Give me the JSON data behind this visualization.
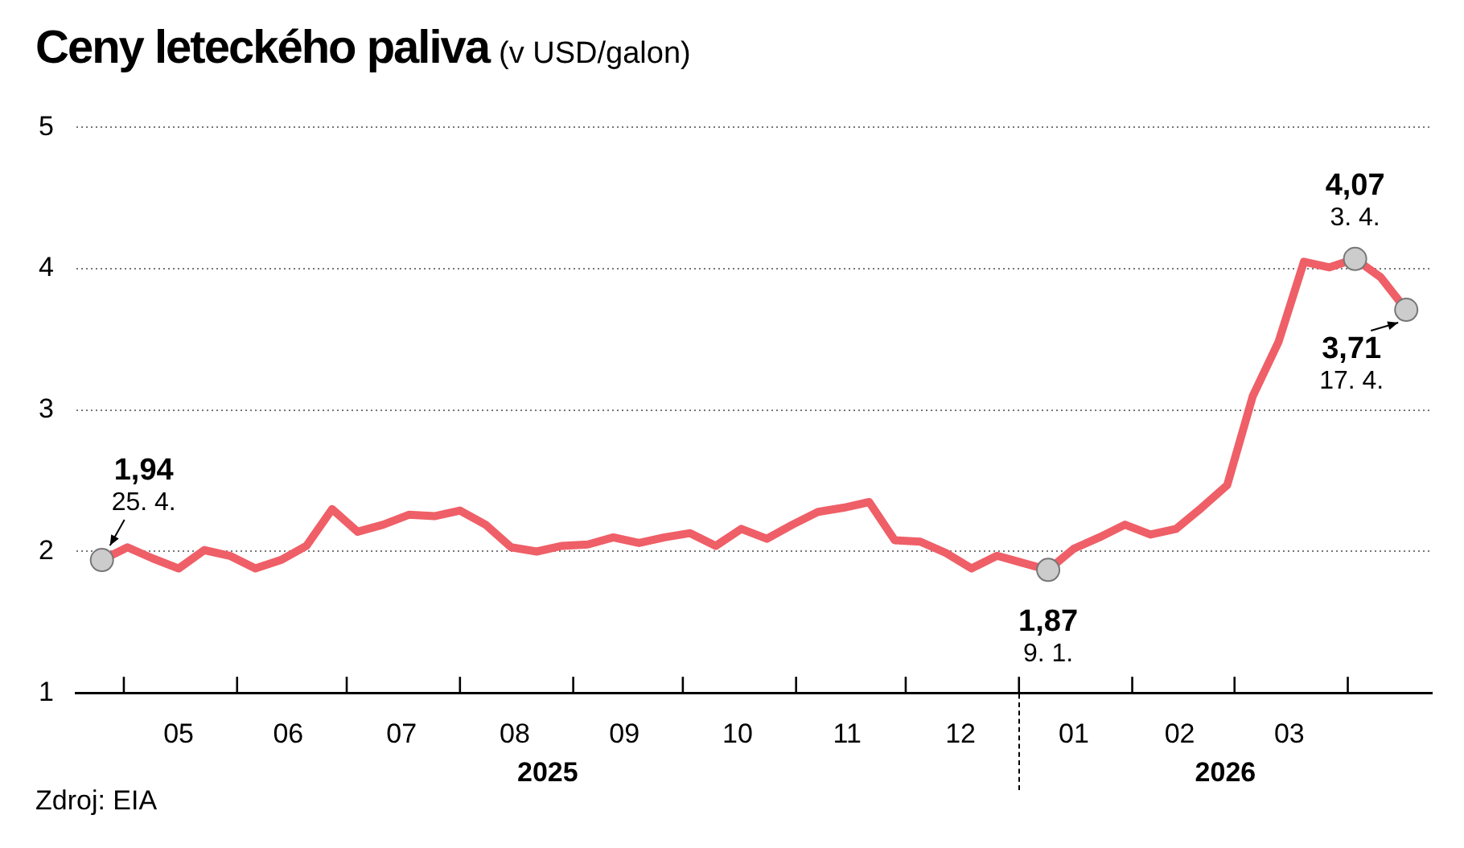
{
  "chart_data": {
    "type": "line",
    "title": "Ceny leteckého paliva",
    "subtitle": "(v USD/galon)",
    "x": [
      "2025-04-25",
      "2025-05-02",
      "2025-05-09",
      "2025-05-16",
      "2025-05-23",
      "2025-05-30",
      "2025-06-06",
      "2025-06-13",
      "2025-06-20",
      "2025-06-27",
      "2025-07-04",
      "2025-07-11",
      "2025-07-18",
      "2025-07-25",
      "2025-08-01",
      "2025-08-08",
      "2025-08-15",
      "2025-08-22",
      "2025-08-29",
      "2025-09-05",
      "2025-09-12",
      "2025-09-19",
      "2025-09-26",
      "2025-10-03",
      "2025-10-10",
      "2025-10-17",
      "2025-10-24",
      "2025-10-31",
      "2025-11-07",
      "2025-11-14",
      "2025-11-21",
      "2025-11-28",
      "2025-12-05",
      "2025-12-12",
      "2025-12-19",
      "2025-12-26",
      "2026-01-02",
      "2026-01-09",
      "2026-01-16",
      "2026-01-23",
      "2026-01-30",
      "2026-02-06",
      "2026-02-13",
      "2026-02-20",
      "2026-02-27",
      "2026-03-06",
      "2026-03-13",
      "2026-03-20",
      "2026-03-27",
      "2026-04-03",
      "2026-04-10",
      "2026-04-17"
    ],
    "values": [
      1.94,
      2.03,
      1.95,
      1.88,
      2.01,
      1.97,
      1.88,
      1.94,
      2.04,
      2.3,
      2.14,
      2.19,
      2.26,
      2.25,
      2.29,
      2.19,
      2.03,
      2.0,
      2.04,
      2.05,
      2.1,
      2.06,
      2.1,
      2.13,
      2.04,
      2.16,
      2.09,
      2.19,
      2.28,
      2.31,
      2.35,
      2.08,
      2.07,
      1.99,
      1.88,
      1.97,
      1.92,
      1.87,
      2.02,
      2.1,
      2.19,
      2.12,
      2.16,
      2.31,
      2.47,
      3.1,
      3.48,
      4.05,
      4.01,
      4.07,
      3.94,
      3.71
    ],
    "value_labels": [
      "1,94",
      null,
      null,
      null,
      null,
      null,
      null,
      null,
      null,
      null,
      null,
      null,
      null,
      null,
      null,
      null,
      null,
      null,
      null,
      null,
      null,
      null,
      null,
      null,
      null,
      null,
      null,
      null,
      null,
      null,
      null,
      null,
      null,
      null,
      null,
      null,
      null,
      "1,87",
      null,
      null,
      null,
      null,
      null,
      null,
      null,
      null,
      null,
      null,
      null,
      "4,07",
      null,
      "3,71"
    ],
    "color": "#ef5f67",
    "xlim": [
      "2025-04-18",
      "2026-04-24"
    ],
    "xticks": [
      {
        "value": "2025-05-01",
        "label": null
      },
      {
        "value": "2025-05-16",
        "label": "05"
      },
      {
        "value": "2025-06-01",
        "label": null
      },
      {
        "value": "2025-06-15",
        "label": "06"
      },
      {
        "value": "2025-07-01",
        "label": null
      },
      {
        "value": "2025-07-16",
        "label": "07"
      },
      {
        "value": "2025-08-01",
        "label": null
      },
      {
        "value": "2025-08-16",
        "label": "08"
      },
      {
        "value": "2025-09-01",
        "label": null
      },
      {
        "value": "2025-09-15",
        "label": "09"
      },
      {
        "value": "2025-10-01",
        "label": null
      },
      {
        "value": "2025-10-16",
        "label": "10"
      },
      {
        "value": "2025-11-01",
        "label": null
      },
      {
        "value": "2025-11-15",
        "label": "11"
      },
      {
        "value": "2025-12-01",
        "label": null
      },
      {
        "value": "2025-12-16",
        "label": "12"
      },
      {
        "value": "2026-01-01",
        "label": null
      },
      {
        "value": "2026-01-16",
        "label": "01"
      },
      {
        "value": "2026-02-01",
        "label": null
      },
      {
        "value": "2026-02-14",
        "label": "02"
      },
      {
        "value": "2026-03-01",
        "label": null
      },
      {
        "value": "2026-03-16",
        "label": "03"
      },
      {
        "value": "2026-04-01",
        "label": null
      }
    ],
    "ylim": [
      1,
      5
    ],
    "yticks": [
      1,
      2,
      3,
      4,
      5
    ],
    "grid": "y",
    "annotations": [
      {
        "text": "25. 4.",
        "x": "2025-04-25",
        "y": 1.94
      },
      {
        "text": "9. 1.",
        "x": "2026-01-09",
        "y": 1.87
      },
      {
        "text": "3. 4.",
        "x": "2026-04-03",
        "y": 4.07
      },
      {
        "text": "17. 4.",
        "x": "2026-04-17",
        "y": 3.71
      },
      "2025",
      "2026",
      "Zdroj: EIA"
    ]
  }
}
